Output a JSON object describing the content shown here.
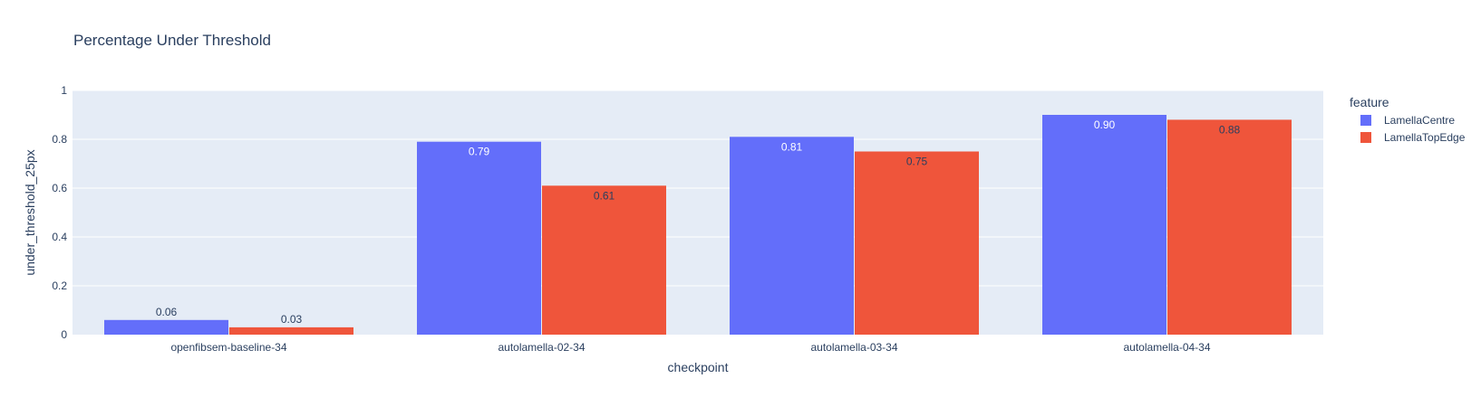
{
  "chart_data": {
    "type": "bar",
    "barmode": "group",
    "title": "Percentage Under Threshold",
    "xlabel": "checkpoint",
    "ylabel": "under_threshold_25px",
    "ylim": [
      0,
      1
    ],
    "yticks": [
      0,
      0.2,
      0.4,
      0.6,
      0.8,
      1
    ],
    "ytick_labels": [
      "0",
      "0.2",
      "0.4",
      "0.6",
      "0.8",
      "1"
    ],
    "grid": true,
    "legend_title": "feature",
    "legend_position": "right",
    "categories": [
      "openfibsem-baseline-34",
      "autolamella-02-34",
      "autolamella-03-34",
      "autolamella-04-34"
    ],
    "series": [
      {
        "name": "LamellaCentre",
        "color": "#636efa",
        "values": [
          0.06,
          0.79,
          0.81,
          0.9
        ],
        "labels": [
          "0.06",
          "0.79",
          "0.81",
          "0.90"
        ]
      },
      {
        "name": "LamellaTopEdge",
        "color": "#ef553b",
        "values": [
          0.03,
          0.61,
          0.75,
          0.88
        ],
        "labels": [
          "0.03",
          "0.61",
          "0.75",
          "0.88"
        ]
      }
    ],
    "plot_background": "#e5ecf6",
    "text_color": "#2a3f5f"
  }
}
